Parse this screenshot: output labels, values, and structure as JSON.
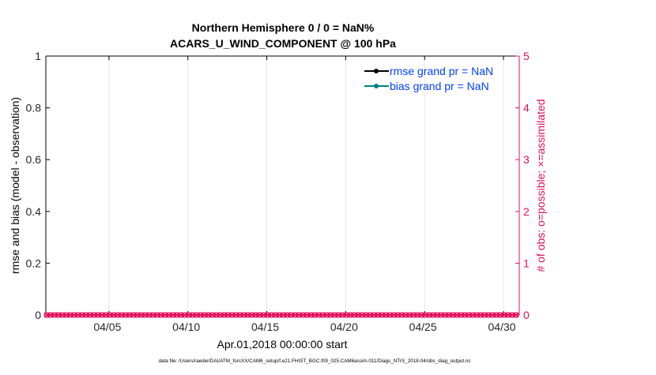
{
  "chart_data": {
    "type": "line",
    "title_line1": "Northern Hemisphere 0 / 0 = NaN%",
    "title_line2": "ACARS_U_WIND_COMPONENT @ 100 hPa",
    "ylabel_left": "rmse and bias (model - observation)",
    "ylabel_right": "# of obs: o=possible; ×=assimilated",
    "xlabel": "Apr.01,2018 00:00:00 start",
    "footnote": "data file: /Users/raeder/DAI/ATM_forcXX/CAM6_setup/f.e21.FHIST_BGC.f09_025.CAM6assim.011/Diags_NTrS_2018-04/obs_diag_output.nc",
    "ylim_left": [
      0,
      1
    ],
    "yticks_left": [
      "0",
      "0.2",
      "0.4",
      "0.6",
      "0.8",
      "1"
    ],
    "ylim_right": [
      0,
      5
    ],
    "yticks_right": [
      "0",
      "1",
      "2",
      "3",
      "4",
      "5"
    ],
    "xlim_days": [
      1,
      31
    ],
    "xticks": [
      {
        "day": 5,
        "label": "04/05"
      },
      {
        "day": 10,
        "label": "04/10"
      },
      {
        "day": 15,
        "label": "04/15"
      },
      {
        "day": 20,
        "label": "04/20"
      },
      {
        "day": 25,
        "label": "04/25"
      },
      {
        "day": 30,
        "label": "04/30"
      }
    ],
    "grid": true,
    "legend_position": "top-right",
    "legend": [
      {
        "label": "rmse grand pr = NaN",
        "color": "#000000"
      },
      {
        "label": "bias grand pr = NaN",
        "color": "#008080"
      }
    ],
    "legend_text_color": "#0040ff",
    "obs_color": "#e0105a",
    "obs_interval_hours": 6,
    "obs_count": 120,
    "obs_possible_value": 0,
    "obs_assimilated_value": 0
  }
}
